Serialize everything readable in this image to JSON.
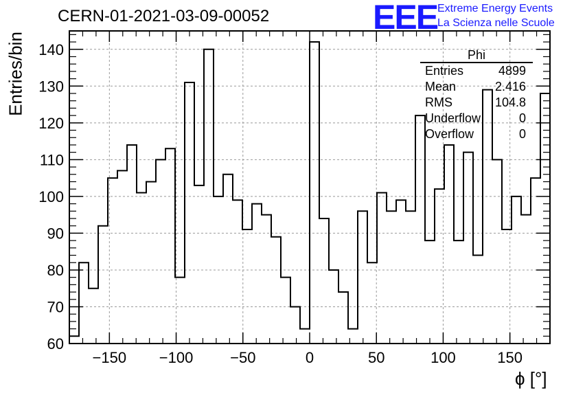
{
  "title": "CERN-01-2021-03-09-00052",
  "logo": {
    "mark": "EEE",
    "line1": "Extreme Energy Events",
    "line2": "La Scienza nelle Scuole",
    "color": "#1a1aff"
  },
  "stats": {
    "title": "Phi",
    "rows": [
      {
        "label": "Entries",
        "value": "4899"
      },
      {
        "label": "Mean",
        "value": "2.416"
      },
      {
        "label": "RMS",
        "value": "104.8"
      },
      {
        "label": "Underflow",
        "value": "0"
      },
      {
        "label": "Overflow",
        "value": "0"
      }
    ]
  },
  "chart_data": {
    "type": "bar",
    "style": "step histogram",
    "xlabel": "ϕ [°]",
    "ylabel": "Entries/bin",
    "xlim": [
      -180,
      180
    ],
    "ylim": [
      60,
      145
    ],
    "grid": true,
    "bin_width": 7.2,
    "bin_start": -180,
    "x_ticks": [
      -150,
      -100,
      -50,
      0,
      50,
      100,
      150
    ],
    "x_tick_labels": [
      "−150",
      "−100",
      "−50",
      "0",
      "50",
      "100",
      "150"
    ],
    "y_ticks": [
      60,
      70,
      80,
      90,
      100,
      110,
      120,
      130,
      140
    ],
    "y_tick_labels": [
      "60",
      "70",
      "80",
      "90",
      "100",
      "110",
      "120",
      "130",
      "140"
    ],
    "values": [
      62,
      82,
      75,
      92,
      105,
      107,
      114,
      101,
      104,
      110,
      113,
      78,
      131,
      103,
      140,
      100,
      106,
      99,
      91,
      98,
      95,
      89,
      78,
      70,
      64,
      142,
      94,
      80,
      74,
      64,
      96,
      82,
      101,
      96,
      99,
      96,
      122,
      88,
      102,
      114,
      88,
      112,
      84,
      129,
      110,
      91,
      100,
      95,
      105,
      128
    ]
  }
}
